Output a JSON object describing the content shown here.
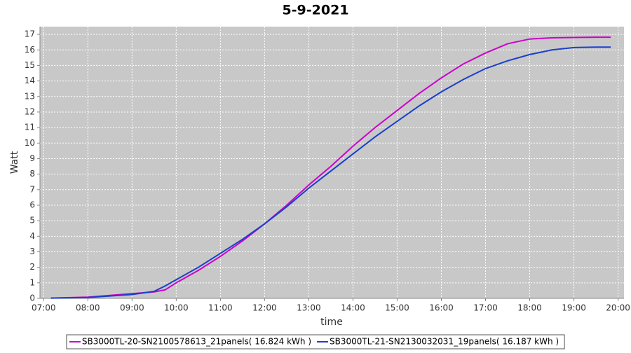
{
  "chart_data": {
    "type": "line",
    "title": "5-9-2021",
    "x_label": "time",
    "y_label": "Watt",
    "x": [
      "07:10",
      "08:00",
      "09:00",
      "09:30",
      "09:45",
      "10:00",
      "10:30",
      "11:00",
      "11:30",
      "12:00",
      "12:30",
      "13:00",
      "13:30",
      "14:00",
      "14:30",
      "15:00",
      "15:30",
      "16:00",
      "16:30",
      "17:00",
      "17:30",
      "18:00",
      "18:30",
      "19:00",
      "19:30",
      "19:50"
    ],
    "series": [
      {
        "name": "SB3000TL-20-SN2100578613_21panels( 16.824 kWh )",
        "color": "#cc00cc",
        "values": [
          0.02,
          0.08,
          0.3,
          0.42,
          0.55,
          1.0,
          1.8,
          2.7,
          3.7,
          4.8,
          6.0,
          7.3,
          8.5,
          9.8,
          11.0,
          12.1,
          13.2,
          14.2,
          15.1,
          15.8,
          16.4,
          16.7,
          16.78,
          16.8,
          16.82,
          16.82
        ]
      },
      {
        "name": "SB3000TL-21-SN2130032031_19panels( 16.187 kWh )",
        "color": "#1a3fcc",
        "values": [
          0.02,
          0.06,
          0.25,
          0.45,
          0.8,
          1.2,
          2.0,
          2.9,
          3.8,
          4.8,
          5.9,
          7.1,
          8.2,
          9.3,
          10.4,
          11.4,
          12.4,
          13.3,
          14.1,
          14.8,
          15.3,
          15.7,
          16.0,
          16.15,
          16.18,
          16.18
        ]
      }
    ],
    "xlim": [
      "06:55",
      "20:08"
    ],
    "xticks": [
      "07:00",
      "08:00",
      "09:00",
      "10:00",
      "11:00",
      "12:00",
      "13:00",
      "14:00",
      "15:00",
      "16:00",
      "17:00",
      "18:00",
      "19:00",
      "20:00"
    ],
    "ylim": [
      0,
      17.5
    ],
    "yticks": [
      0,
      1,
      2,
      3,
      4,
      5,
      6,
      7,
      8,
      9,
      10,
      11,
      12,
      13,
      14,
      15,
      16,
      17
    ],
    "grid": true,
    "legend": "bottom"
  }
}
